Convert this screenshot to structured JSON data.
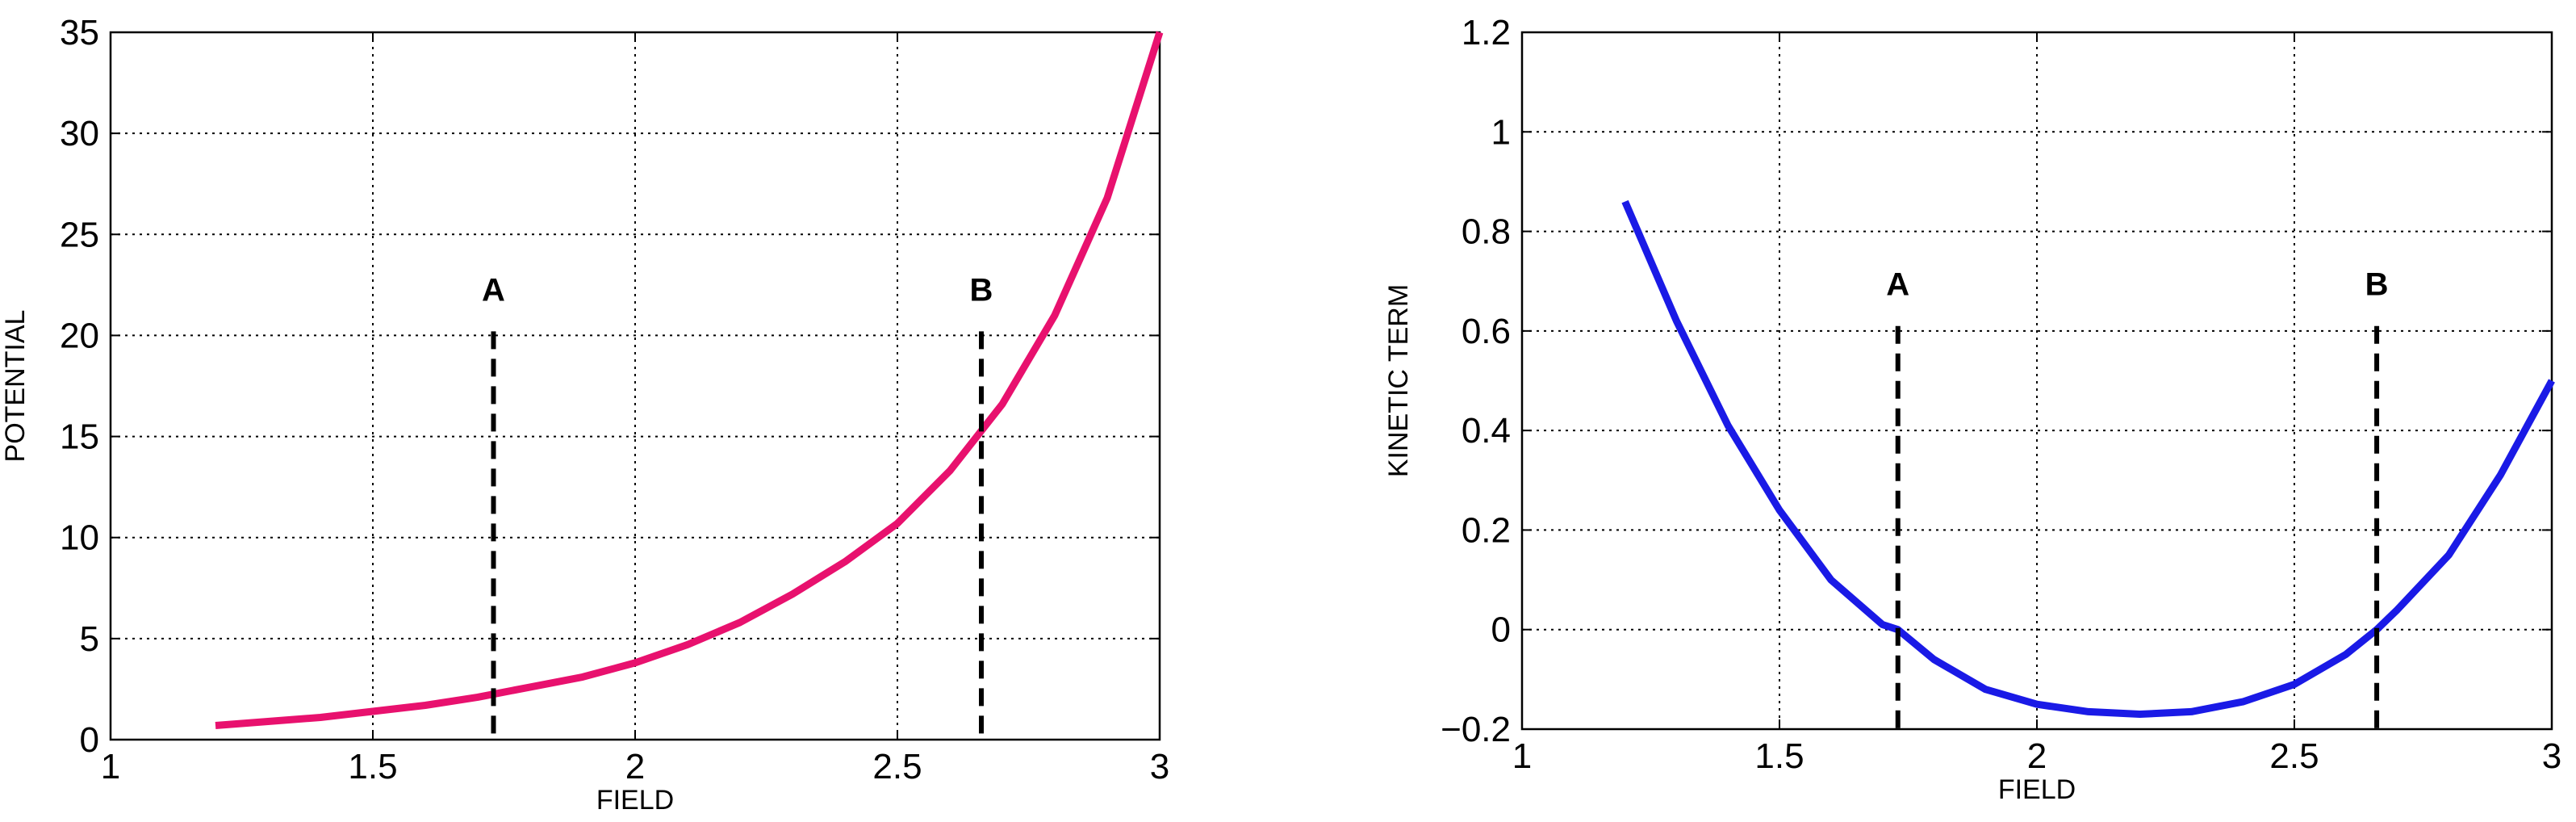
{
  "colors": {
    "left_curve": "#e8116e",
    "right_curve": "#1a1ae6",
    "axes": "#000000",
    "grid": "#000000"
  },
  "chart_data": [
    {
      "type": "line",
      "title": "",
      "xlabel": "FIELD",
      "ylabel": "POTENTIAL",
      "xlim": [
        1,
        3
      ],
      "ylim": [
        0,
        35
      ],
      "grid": true,
      "xticks": [
        1,
        1.5,
        2,
        2.5,
        3
      ],
      "yticks": [
        0,
        5,
        10,
        15,
        20,
        25,
        30,
        35
      ],
      "xtick_labels": [
        "1",
        "1.5",
        "2",
        "2.5",
        "3"
      ],
      "ytick_labels": [
        "0",
        "5",
        "10",
        "15",
        "20",
        "25",
        "30",
        "35"
      ],
      "series": [
        {
          "color": "#e8116e",
          "x": [
            1.2,
            1.3,
            1.4,
            1.5,
            1.6,
            1.7,
            1.8,
            1.9,
            2.0,
            2.1,
            2.2,
            2.3,
            2.4,
            2.5,
            2.6,
            2.7,
            2.8,
            2.9,
            3.0
          ],
          "y": [
            0.7,
            0.9,
            1.1,
            1.4,
            1.7,
            2.1,
            2.6,
            3.1,
            3.8,
            4.7,
            5.8,
            7.2,
            8.8,
            10.7,
            13.3,
            16.6,
            21.0,
            26.8,
            35.0
          ]
        }
      ],
      "markers": [
        {
          "label": "A",
          "x": 1.73,
          "y_top": 20.2
        },
        {
          "label": "B",
          "x": 2.66,
          "y_top": 20.2
        }
      ]
    },
    {
      "type": "line",
      "title": "",
      "xlabel": "FIELD",
      "ylabel": "KINETIC TERM",
      "xlim": [
        1,
        3
      ],
      "ylim": [
        -0.2,
        1.2
      ],
      "grid": true,
      "xticks": [
        1,
        1.5,
        2,
        2.5,
        3
      ],
      "yticks": [
        -0.2,
        0,
        0.2,
        0.4,
        0.6,
        0.8,
        1,
        1.2
      ],
      "xtick_labels": [
        "1",
        "1.5",
        "2",
        "2.5",
        "3"
      ],
      "ytick_labels": [
        "−0.2",
        "0",
        "0.2",
        "0.4",
        "0.6",
        "0.8",
        "1",
        "1.2"
      ],
      "series": [
        {
          "color": "#1a1ae6",
          "x": [
            1.2,
            1.3,
            1.4,
            1.5,
            1.6,
            1.7,
            1.73,
            1.8,
            1.9,
            2.0,
            2.1,
            2.2,
            2.3,
            2.4,
            2.5,
            2.6,
            2.66,
            2.7,
            2.8,
            2.9,
            3.0
          ],
          "y": [
            0.86,
            0.62,
            0.41,
            0.24,
            0.1,
            0.01,
            0.0,
            -0.06,
            -0.12,
            -0.15,
            -0.165,
            -0.17,
            -0.165,
            -0.145,
            -0.11,
            -0.05,
            0.0,
            0.04,
            0.15,
            0.31,
            0.5
          ]
        }
      ],
      "markers": [
        {
          "label": "A",
          "x": 1.73,
          "y_top": 0.61
        },
        {
          "label": "B",
          "x": 2.66,
          "y_top": 0.61
        }
      ]
    }
  ]
}
